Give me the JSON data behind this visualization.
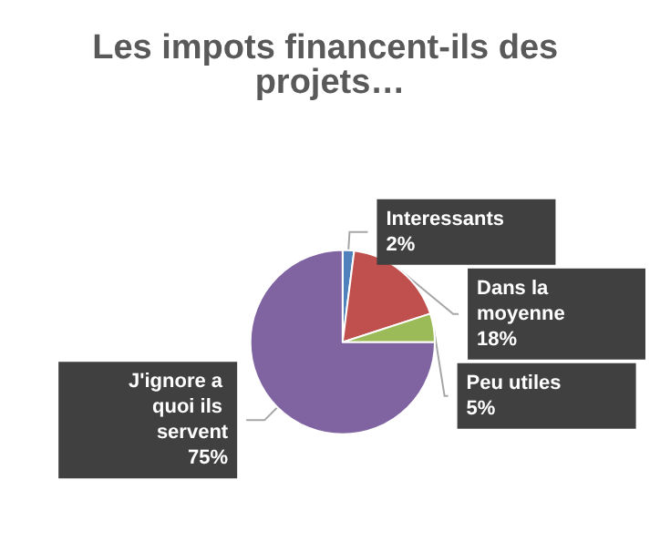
{
  "chart_data": {
    "type": "pie",
    "title": "Les impots financent-ils des projets…",
    "categories": [
      "Interessants",
      "Dans la moyenne",
      "Peu utiles",
      "J'ignore a quoi ils servent"
    ],
    "values": [
      2,
      18,
      5,
      75
    ],
    "colors": [
      "#4f81bd",
      "#c0504d",
      "#9bbb59",
      "#8064a2"
    ],
    "value_labels": [
      "2%",
      "18%",
      "5%",
      "75%"
    ],
    "legend": false
  }
}
